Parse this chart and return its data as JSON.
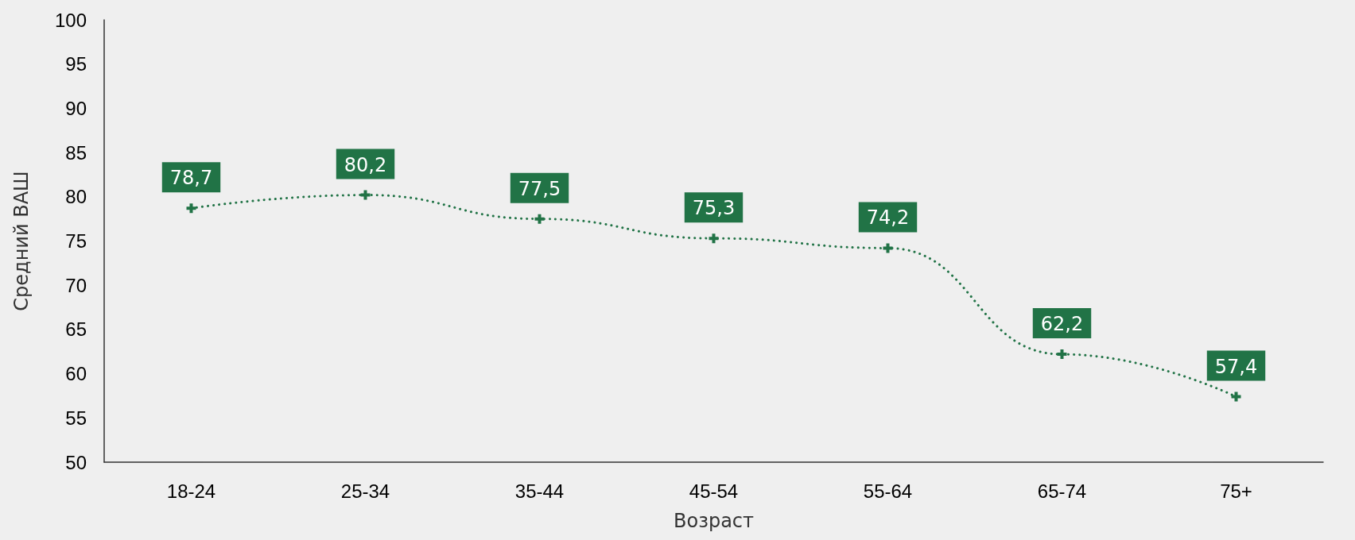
{
  "chart_data": {
    "type": "line",
    "xlabel": "Возраст",
    "ylabel": "Средний ВАШ",
    "categories": [
      "18-24",
      "25-34",
      "35-44",
      "45-54",
      "55-64",
      "65-74",
      "75+"
    ],
    "values": [
      78.7,
      80.2,
      77.5,
      75.3,
      74.2,
      62.2,
      57.4
    ],
    "value_labels": [
      "78,7",
      "80,2",
      "77,5",
      "75,3",
      "74,2",
      "62,2",
      "57,4"
    ],
    "color": "#217346",
    "ylim": [
      50,
      100
    ],
    "yticks": [
      50,
      55,
      60,
      65,
      70,
      75,
      80,
      85,
      90,
      95,
      100
    ],
    "grid": false,
    "marker": "cross",
    "line_style": "dotted"
  }
}
